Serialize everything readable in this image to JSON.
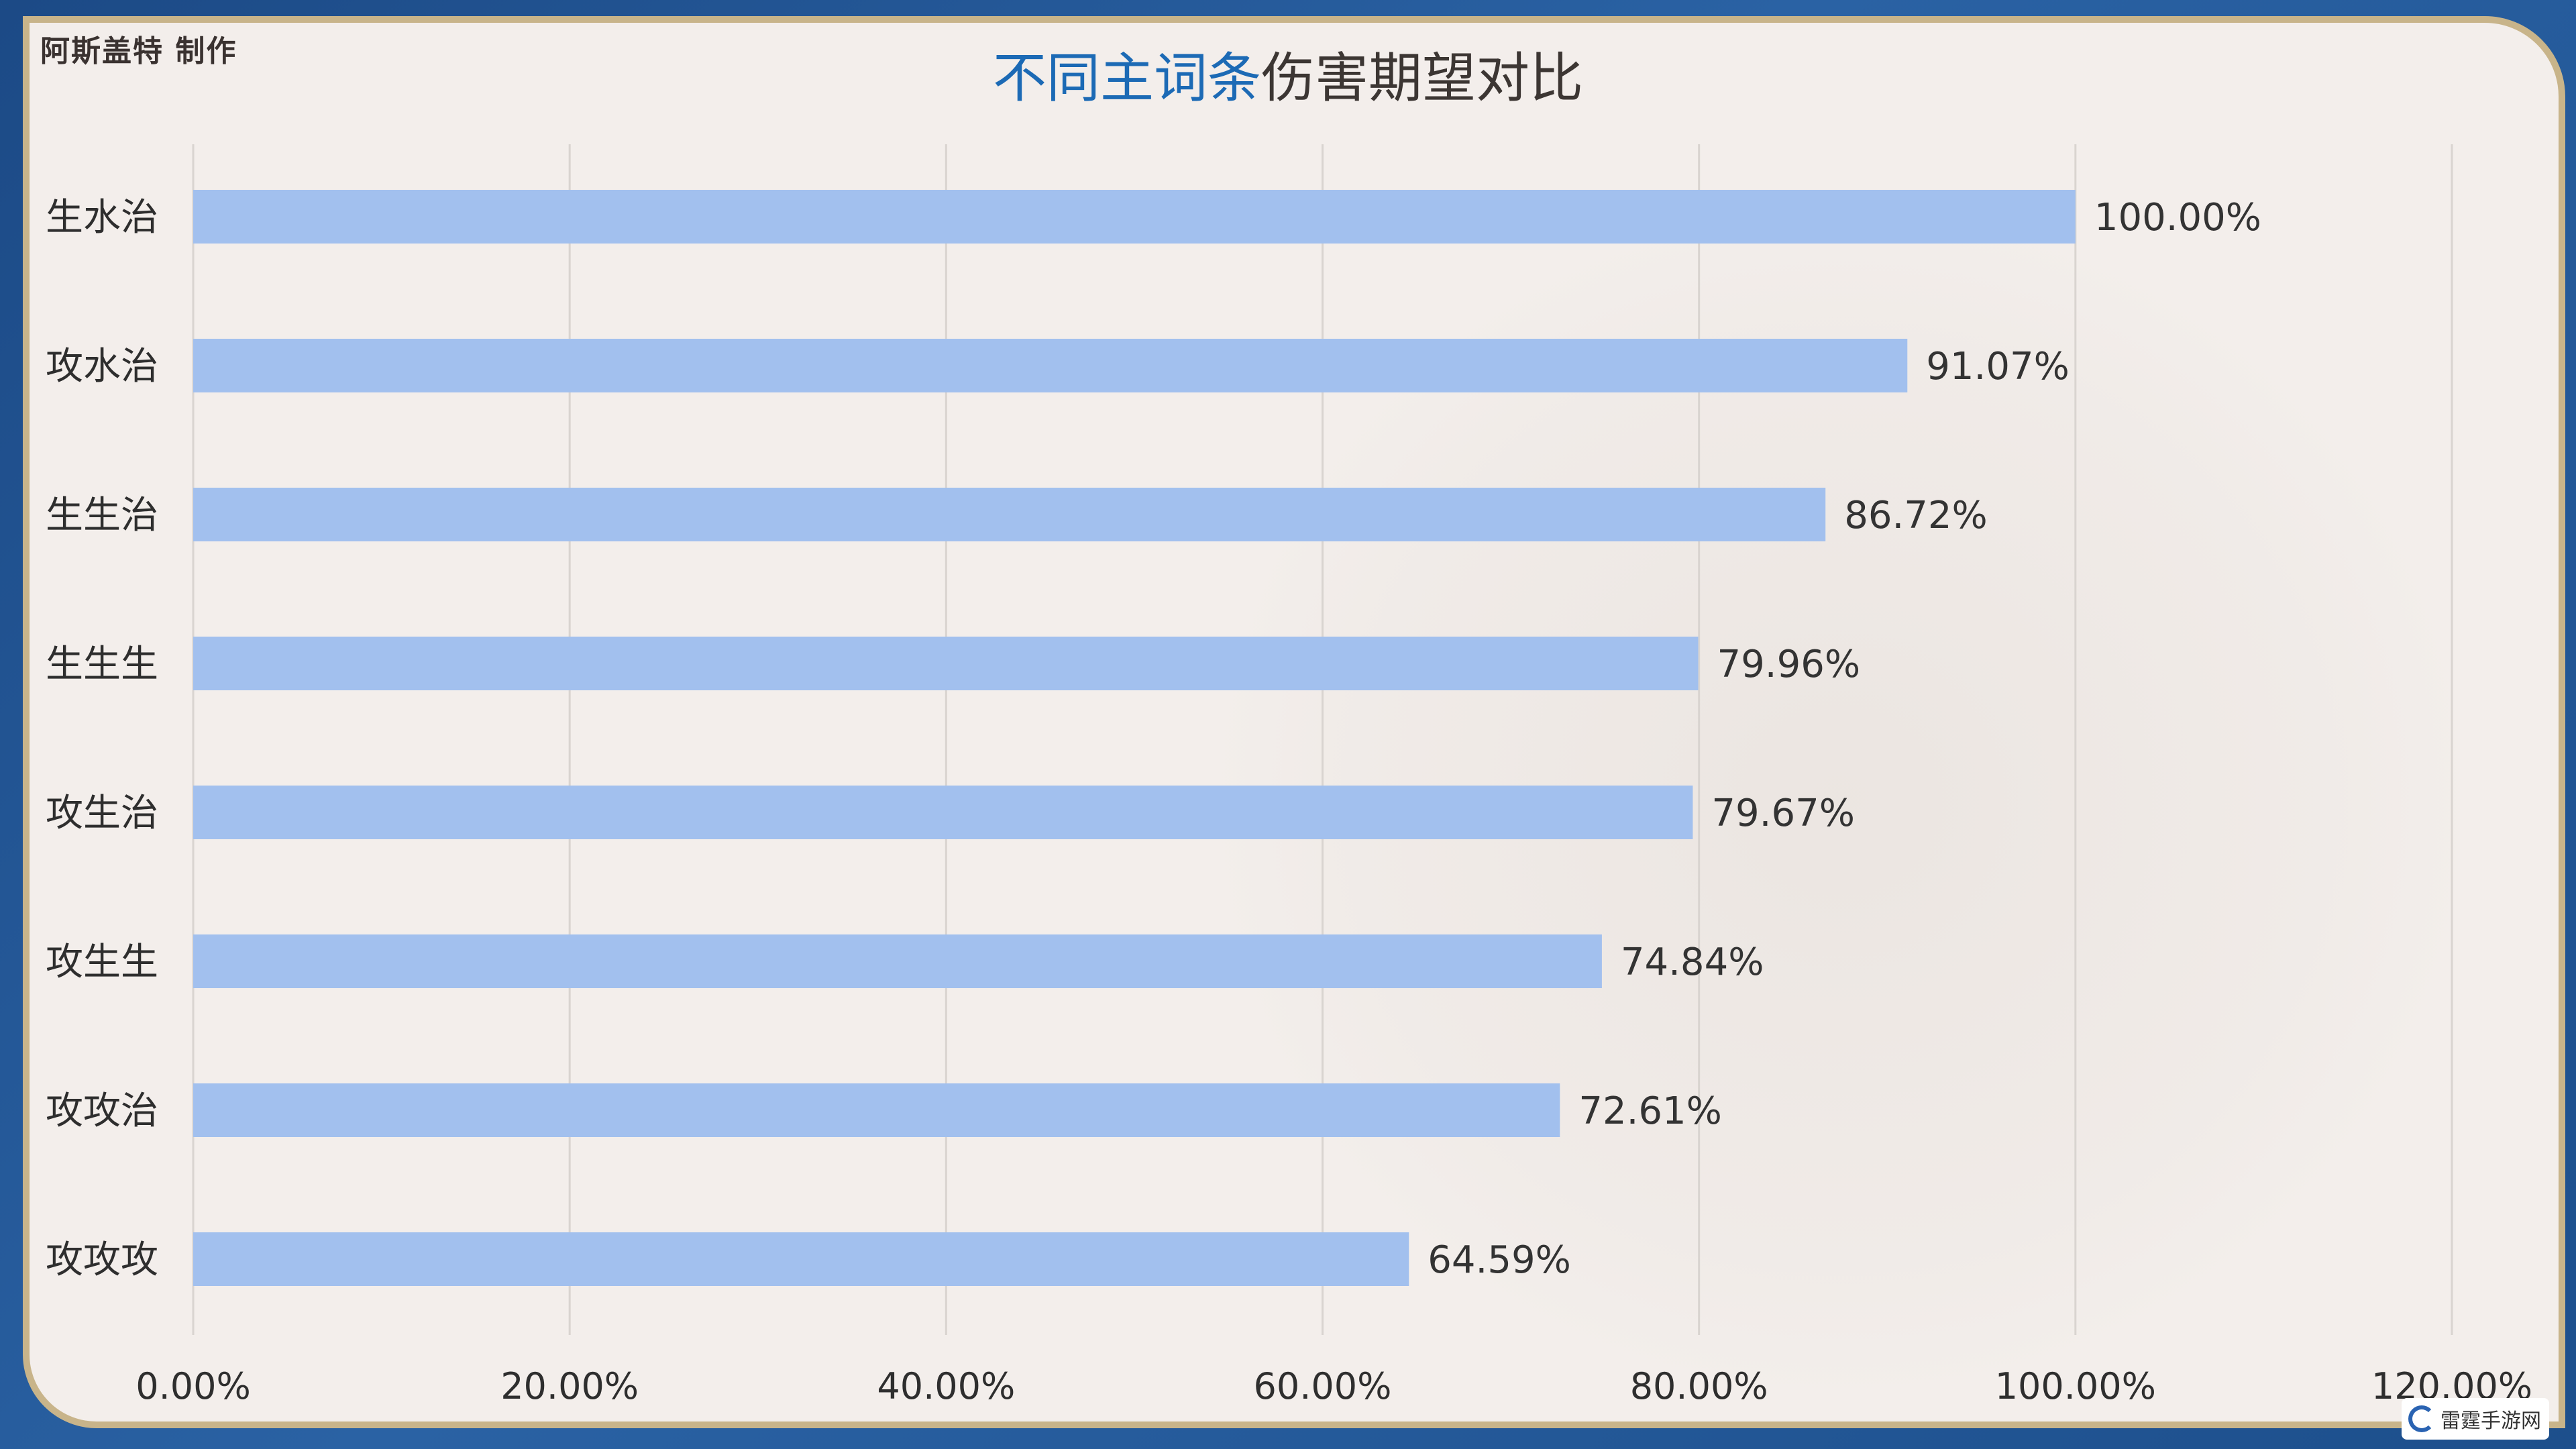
{
  "author": "阿斯盖特 制作",
  "title_accent": "不同主词条",
  "title_rest": "伤害期望对比",
  "logo_text": "雷霆手游网",
  "colors": {
    "bar": "#a2c0ee",
    "grid": "#d9d4d0",
    "accent": "#1c6ab5"
  },
  "chart_data": {
    "type": "bar",
    "orientation": "horizontal",
    "title": "不同主词条伤害期望对比",
    "categories": [
      "生水治",
      "攻水治",
      "生生治",
      "生生生",
      "攻生治",
      "攻生生",
      "攻攻治",
      "攻攻攻"
    ],
    "values": [
      100.0,
      91.07,
      86.72,
      79.96,
      79.67,
      74.84,
      72.61,
      64.59
    ],
    "value_labels": [
      "100.00%",
      "91.07%",
      "86.72%",
      "79.96%",
      "79.67%",
      "74.84%",
      "72.61%",
      "64.59%"
    ],
    "xlim": [
      0,
      120
    ],
    "xticks": [
      "0.00%",
      "20.00%",
      "40.00%",
      "60.00%",
      "80.00%",
      "100.00%",
      "120.00%"
    ],
    "xlabel": "",
    "ylabel": "",
    "grid": true
  }
}
